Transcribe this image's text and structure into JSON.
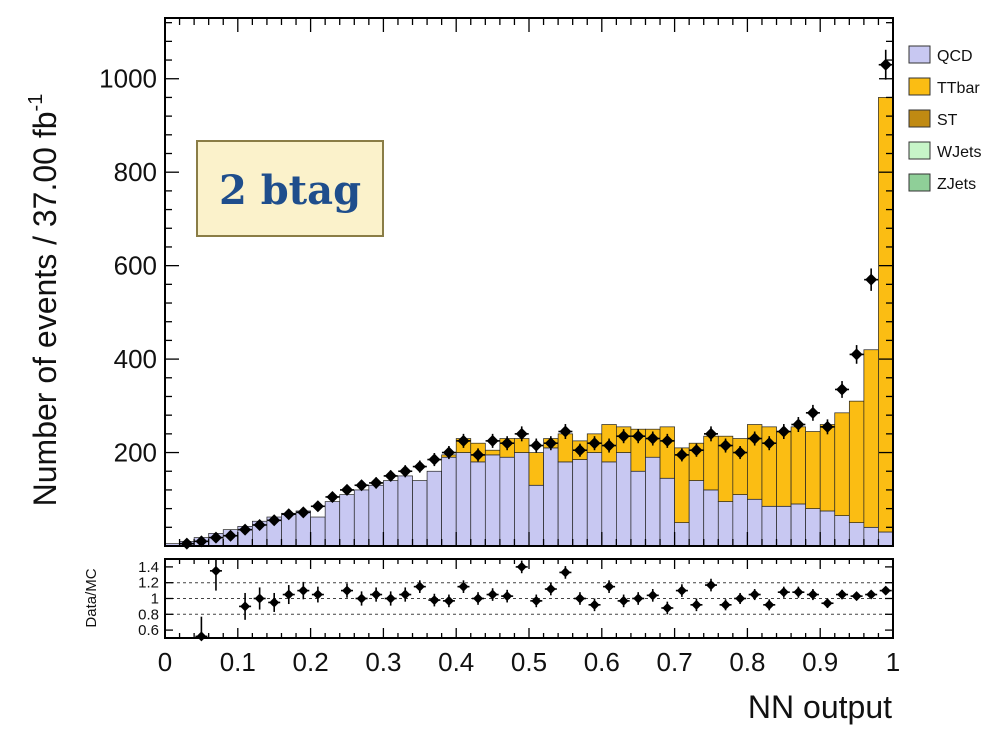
{
  "chart_data": [
    {
      "type": "stacked-bar-histogram",
      "xlabel": "NN output",
      "ylabel": "Number of events / 37.00 fb",
      "ylabel_superscript": "-1",
      "xlim": [
        0,
        1
      ],
      "ylim": [
        0,
        1130
      ],
      "y_ticks": [
        200,
        400,
        600,
        800,
        1000
      ],
      "x_ticks": [
        "0",
        "0.1",
        "0.2",
        "0.3",
        "0.4",
        "0.5",
        "0.6",
        "0.7",
        "0.8",
        "0.9",
        "1"
      ],
      "annotation": "2 btag",
      "colors": {
        "QCD": "#c8c8f2",
        "TTbar": "#fbbd13",
        "ST": "#c08a12",
        "WJets": "#c7f5c8",
        "ZJets": "#8fcf98",
        "data": "#000000"
      },
      "bins": [
        0.0,
        0.02,
        0.04,
        0.06,
        0.08,
        0.1,
        0.12,
        0.14,
        0.16,
        0.18,
        0.2,
        0.22,
        0.24,
        0.26,
        0.28,
        0.3,
        0.32,
        0.34,
        0.36,
        0.38,
        0.4,
        0.42,
        0.44,
        0.46,
        0.48,
        0.5,
        0.52,
        0.54,
        0.56,
        0.58,
        0.6,
        0.62,
        0.64,
        0.66,
        0.68,
        0.7,
        0.72,
        0.74,
        0.76,
        0.78,
        0.8,
        0.82,
        0.84,
        0.86,
        0.88,
        0.9,
        0.92,
        0.94,
        0.96,
        0.98,
        1.0
      ],
      "series": [
        {
          "name": "QCD",
          "values": [
            5,
            10,
            18,
            27,
            35,
            42,
            53,
            62,
            70,
            75,
            62,
            95,
            110,
            120,
            130,
            140,
            150,
            140,
            160,
            190,
            200,
            180,
            195,
            190,
            200,
            130,
            210,
            180,
            185,
            200,
            180,
            200,
            160,
            190,
            145,
            50,
            140,
            120,
            95,
            110,
            100,
            85,
            85,
            90,
            80,
            75,
            65,
            50,
            40,
            30
          ]
        },
        {
          "name": "TTbar",
          "values": [
            0,
            0,
            0,
            0,
            0,
            0,
            0,
            0,
            0,
            0,
            0,
            0,
            0,
            0,
            0,
            0,
            0,
            0,
            0,
            5,
            30,
            40,
            10,
            40,
            30,
            70,
            20,
            60,
            40,
            40,
            80,
            55,
            90,
            60,
            110,
            160,
            80,
            115,
            140,
            120,
            160,
            170,
            160,
            165,
            165,
            185,
            220,
            260,
            380,
            930
          ]
        },
        {
          "name": "ST",
          "values": [
            0,
            0,
            0,
            0,
            0,
            0,
            0,
            0,
            0,
            0,
            0,
            0,
            0,
            0,
            0,
            0,
            0,
            0,
            0,
            0,
            0,
            0,
            0,
            0,
            0,
            0,
            0,
            0,
            0,
            0,
            0,
            0,
            0,
            0,
            0,
            0,
            0,
            0,
            0,
            0,
            0,
            0,
            0,
            0,
            0,
            0,
            0,
            0,
            0,
            0
          ]
        },
        {
          "name": "WJets",
          "values": [
            0,
            0,
            0,
            0,
            0,
            0,
            0,
            0,
            0,
            0,
            0,
            0,
            0,
            0,
            0,
            0,
            0,
            0,
            0,
            0,
            0,
            0,
            0,
            0,
            0,
            0,
            0,
            0,
            0,
            0,
            0,
            0,
            0,
            0,
            0,
            0,
            0,
            0,
            0,
            0,
            0,
            0,
            0,
            0,
            0,
            0,
            0,
            0,
            0,
            0
          ]
        },
        {
          "name": "ZJets",
          "values": [
            0,
            0,
            0,
            0,
            0,
            0,
            0,
            0,
            0,
            0,
            0,
            0,
            0,
            0,
            0,
            0,
            0,
            0,
            0,
            0,
            0,
            0,
            0,
            0,
            0,
            0,
            0,
            0,
            0,
            0,
            0,
            0,
            0,
            0,
            0,
            0,
            0,
            0,
            0,
            0,
            0,
            0,
            0,
            0,
            0,
            0,
            0,
            0,
            0,
            0
          ]
        }
      ],
      "data_points": [
        {
          "x": 0.03,
          "y": 5,
          "err": 3
        },
        {
          "x": 0.05,
          "y": 10,
          "err": 4
        },
        {
          "x": 0.07,
          "y": 18,
          "err": 5
        },
        {
          "x": 0.09,
          "y": 22,
          "err": 5
        },
        {
          "x": 0.11,
          "y": 35,
          "err": 6
        },
        {
          "x": 0.13,
          "y": 45,
          "err": 7
        },
        {
          "x": 0.15,
          "y": 55,
          "err": 7
        },
        {
          "x": 0.17,
          "y": 68,
          "err": 8
        },
        {
          "x": 0.19,
          "y": 72,
          "err": 8
        },
        {
          "x": 0.21,
          "y": 85,
          "err": 9
        },
        {
          "x": 0.23,
          "y": 105,
          "err": 10
        },
        {
          "x": 0.25,
          "y": 120,
          "err": 11
        },
        {
          "x": 0.27,
          "y": 130,
          "err": 11
        },
        {
          "x": 0.29,
          "y": 135,
          "err": 12
        },
        {
          "x": 0.31,
          "y": 150,
          "err": 12
        },
        {
          "x": 0.33,
          "y": 160,
          "err": 13
        },
        {
          "x": 0.35,
          "y": 170,
          "err": 13
        },
        {
          "x": 0.37,
          "y": 185,
          "err": 14
        },
        {
          "x": 0.39,
          "y": 200,
          "err": 14
        },
        {
          "x": 0.41,
          "y": 225,
          "err": 15
        },
        {
          "x": 0.43,
          "y": 195,
          "err": 14
        },
        {
          "x": 0.45,
          "y": 225,
          "err": 15
        },
        {
          "x": 0.47,
          "y": 220,
          "err": 15
        },
        {
          "x": 0.49,
          "y": 240,
          "err": 16
        },
        {
          "x": 0.51,
          "y": 215,
          "err": 15
        },
        {
          "x": 0.53,
          "y": 220,
          "err": 15
        },
        {
          "x": 0.55,
          "y": 245,
          "err": 16
        },
        {
          "x": 0.57,
          "y": 205,
          "err": 14
        },
        {
          "x": 0.59,
          "y": 220,
          "err": 15
        },
        {
          "x": 0.61,
          "y": 215,
          "err": 15
        },
        {
          "x": 0.63,
          "y": 235,
          "err": 15
        },
        {
          "x": 0.65,
          "y": 235,
          "err": 15
        },
        {
          "x": 0.67,
          "y": 230,
          "err": 15
        },
        {
          "x": 0.69,
          "y": 225,
          "err": 15
        },
        {
          "x": 0.71,
          "y": 195,
          "err": 14
        },
        {
          "x": 0.73,
          "y": 205,
          "err": 14
        },
        {
          "x": 0.75,
          "y": 240,
          "err": 16
        },
        {
          "x": 0.77,
          "y": 215,
          "err": 15
        },
        {
          "x": 0.79,
          "y": 200,
          "err": 14
        },
        {
          "x": 0.81,
          "y": 230,
          "err": 15
        },
        {
          "x": 0.83,
          "y": 220,
          "err": 15
        },
        {
          "x": 0.85,
          "y": 245,
          "err": 16
        },
        {
          "x": 0.87,
          "y": 260,
          "err": 16
        },
        {
          "x": 0.89,
          "y": 285,
          "err": 17
        },
        {
          "x": 0.91,
          "y": 255,
          "err": 16
        },
        {
          "x": 0.93,
          "y": 335,
          "err": 18
        },
        {
          "x": 0.95,
          "y": 410,
          "err": 20
        },
        {
          "x": 0.97,
          "y": 570,
          "err": 24
        },
        {
          "x": 0.99,
          "y": 1030,
          "err": 32
        }
      ]
    },
    {
      "type": "scatter",
      "ylabel": "Data/MC",
      "ylim": [
        0.5,
        1.5
      ],
      "y_ticks": [
        "0.6",
        "0.8",
        "1",
        "1.2",
        "1.4"
      ],
      "reference_lines": [
        0.8,
        1.0,
        1.2
      ],
      "points": [
        {
          "x": 0.05,
          "y": 0.52,
          "err": 0.25
        },
        {
          "x": 0.07,
          "y": 1.35,
          "err": 0.25
        },
        {
          "x": 0.11,
          "y": 0.9,
          "err": 0.17
        },
        {
          "x": 0.13,
          "y": 1.0,
          "err": 0.14
        },
        {
          "x": 0.15,
          "y": 0.95,
          "err": 0.12
        },
        {
          "x": 0.17,
          "y": 1.05,
          "err": 0.12
        },
        {
          "x": 0.19,
          "y": 1.1,
          "err": 0.11
        },
        {
          "x": 0.21,
          "y": 1.05,
          "err": 0.1
        },
        {
          "x": 0.25,
          "y": 1.1,
          "err": 0.09
        },
        {
          "x": 0.27,
          "y": 1.0,
          "err": 0.09
        },
        {
          "x": 0.29,
          "y": 1.05,
          "err": 0.09
        },
        {
          "x": 0.31,
          "y": 1.0,
          "err": 0.09
        },
        {
          "x": 0.33,
          "y": 1.05,
          "err": 0.09
        },
        {
          "x": 0.35,
          "y": 1.15,
          "err": 0.08
        },
        {
          "x": 0.37,
          "y": 0.98,
          "err": 0.08
        },
        {
          "x": 0.39,
          "y": 0.97,
          "err": 0.08
        },
        {
          "x": 0.41,
          "y": 1.15,
          "err": 0.08
        },
        {
          "x": 0.43,
          "y": 1.0,
          "err": 0.08
        },
        {
          "x": 0.45,
          "y": 1.05,
          "err": 0.08
        },
        {
          "x": 0.47,
          "y": 1.03,
          "err": 0.08
        },
        {
          "x": 0.49,
          "y": 1.4,
          "err": 0.08
        },
        {
          "x": 0.51,
          "y": 0.97,
          "err": 0.08
        },
        {
          "x": 0.53,
          "y": 1.12,
          "err": 0.08
        },
        {
          "x": 0.55,
          "y": 1.33,
          "err": 0.08
        },
        {
          "x": 0.57,
          "y": 1.0,
          "err": 0.08
        },
        {
          "x": 0.59,
          "y": 0.92,
          "err": 0.08
        },
        {
          "x": 0.61,
          "y": 1.15,
          "err": 0.08
        },
        {
          "x": 0.63,
          "y": 0.97,
          "err": 0.08
        },
        {
          "x": 0.65,
          "y": 1.0,
          "err": 0.08
        },
        {
          "x": 0.67,
          "y": 1.04,
          "err": 0.08
        },
        {
          "x": 0.69,
          "y": 0.88,
          "err": 0.08
        },
        {
          "x": 0.71,
          "y": 1.1,
          "err": 0.08
        },
        {
          "x": 0.73,
          "y": 0.92,
          "err": 0.08
        },
        {
          "x": 0.75,
          "y": 1.17,
          "err": 0.08
        },
        {
          "x": 0.77,
          "y": 0.92,
          "err": 0.07
        },
        {
          "x": 0.79,
          "y": 1.0,
          "err": 0.07
        },
        {
          "x": 0.81,
          "y": 1.05,
          "err": 0.07
        },
        {
          "x": 0.83,
          "y": 0.92,
          "err": 0.07
        },
        {
          "x": 0.85,
          "y": 1.08,
          "err": 0.07
        },
        {
          "x": 0.87,
          "y": 1.08,
          "err": 0.07
        },
        {
          "x": 0.89,
          "y": 1.05,
          "err": 0.07
        },
        {
          "x": 0.91,
          "y": 0.94,
          "err": 0.06
        },
        {
          "x": 0.93,
          "y": 1.05,
          "err": 0.06
        },
        {
          "x": 0.95,
          "y": 1.03,
          "err": 0.05
        },
        {
          "x": 0.97,
          "y": 1.05,
          "err": 0.05
        },
        {
          "x": 0.99,
          "y": 1.1,
          "err": 0.04
        }
      ]
    }
  ]
}
